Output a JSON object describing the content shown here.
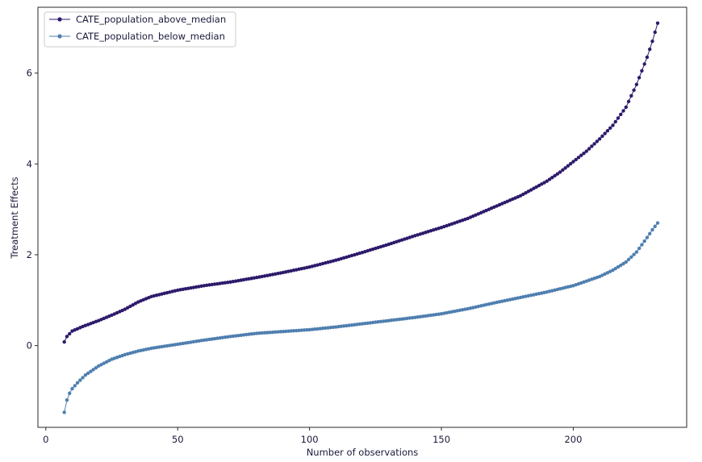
{
  "chart_data": {
    "type": "line",
    "title": "",
    "xlabel": "Number of observations",
    "ylabel": "Treatment Effects",
    "xlim": [
      -3,
      243
    ],
    "ylim": [
      -1.8,
      7.45
    ],
    "xticks": [
      0,
      50,
      100,
      150,
      200
    ],
    "yticks": [
      0,
      2,
      4,
      6
    ],
    "grid": false,
    "legend_loc": "upper-left",
    "x_start": 7,
    "x_end": 232,
    "series": [
      {
        "name": "CATE_population_above_median",
        "color": "#2e1a6b",
        "marker": "circle",
        "knots_x": [
          7,
          8,
          10,
          14,
          20,
          25,
          30,
          35,
          40,
          45,
          50,
          60,
          70,
          80,
          90,
          100,
          110,
          120,
          130,
          140,
          150,
          160,
          170,
          180,
          190,
          195,
          200,
          205,
          210,
          215,
          220,
          224,
          228,
          230,
          232
        ],
        "knots_y": [
          0.08,
          0.2,
          0.32,
          0.42,
          0.55,
          0.67,
          0.8,
          0.96,
          1.08,
          1.15,
          1.22,
          1.32,
          1.4,
          1.5,
          1.61,
          1.73,
          1.88,
          2.05,
          2.23,
          2.42,
          2.6,
          2.8,
          3.05,
          3.3,
          3.62,
          3.82,
          4.05,
          4.28,
          4.55,
          4.85,
          5.25,
          5.75,
          6.35,
          6.7,
          7.1
        ]
      },
      {
        "name": "CATE_population_below_median",
        "color": "#4f7fb0",
        "marker": "circle",
        "knots_x": [
          7,
          8,
          9,
          10,
          12,
          15,
          20,
          25,
          30,
          35,
          40,
          50,
          60,
          70,
          80,
          90,
          100,
          110,
          120,
          130,
          140,
          150,
          160,
          170,
          180,
          190,
          200,
          210,
          215,
          220,
          224,
          228,
          230,
          232
        ],
        "knots_y": [
          -1.47,
          -1.2,
          -1.05,
          -0.95,
          -0.82,
          -0.65,
          -0.45,
          -0.3,
          -0.2,
          -0.12,
          -0.06,
          0.03,
          0.12,
          0.2,
          0.27,
          0.31,
          0.35,
          0.41,
          0.48,
          0.55,
          0.62,
          0.7,
          0.81,
          0.94,
          1.06,
          1.18,
          1.32,
          1.52,
          1.66,
          1.84,
          2.06,
          2.38,
          2.55,
          2.7
        ]
      }
    ]
  }
}
